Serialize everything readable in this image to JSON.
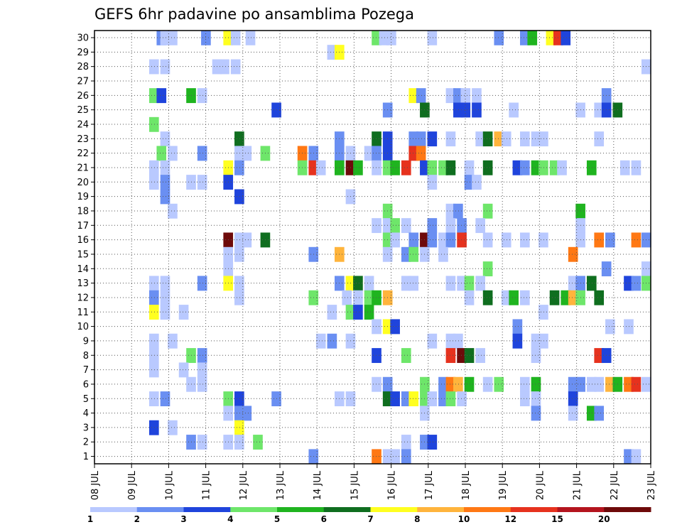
{
  "chart_data": {
    "type": "heatmap",
    "title": "GEFS 6hr padavine po ansamblima Pozega",
    "xlabel": "",
    "ylabel": "",
    "x_tick_labels": [
      "08 JUL",
      "09 JUL",
      "10 JUL",
      "11 JUL",
      "12 JUL",
      "13 JUL",
      "14 JUL",
      "15 JUL",
      "16 JUL",
      "17 JUL",
      "18 JUL",
      "19 JUL",
      "20 JUL",
      "21 JUL",
      "22 JUL",
      "23 JUL"
    ],
    "x_range_days": [
      8,
      23
    ],
    "y_tick_labels": [
      "1",
      "2",
      "3",
      "4",
      "5",
      "6",
      "7",
      "8",
      "9",
      "10",
      "11",
      "12",
      "13",
      "14",
      "15",
      "16",
      "17",
      "18",
      "19",
      "20",
      "21",
      "22",
      "23",
      "24",
      "25",
      "26",
      "27",
      "28",
      "29",
      "30"
    ],
    "grid": true,
    "colorbar": {
      "boundaries": [
        "1",
        "2",
        "3",
        "4",
        "5",
        "6",
        "7",
        "8",
        "10",
        "12",
        "15",
        "20"
      ],
      "colors": [
        "#b9c9ff",
        "#6a8ff2",
        "#1f44dc",
        "#6ee66a",
        "#1fb41f",
        "#0f6e1f",
        "#ffff20",
        "#ffb43c",
        "#ff7814",
        "#e6321e",
        "#b4141e",
        "#6e0a0a"
      ],
      "placement": "bottom"
    },
    "cells": [
      [
        30,
        9.8,
        1
      ],
      [
        30,
        9.9,
        0
      ],
      [
        30,
        10.1,
        0
      ],
      [
        30,
        11.0,
        1
      ],
      [
        30,
        11.6,
        6
      ],
      [
        30,
        11.8,
        0
      ],
      [
        30,
        12.2,
        0
      ],
      [
        30,
        15.6,
        3
      ],
      [
        30,
        15.8,
        0
      ],
      [
        30,
        16.0,
        0
      ],
      [
        30,
        17.1,
        0
      ],
      [
        30,
        18.9,
        1
      ],
      [
        30,
        19.6,
        1
      ],
      [
        30,
        19.8,
        4
      ],
      [
        30,
        20.3,
        6
      ],
      [
        30,
        20.5,
        9
      ],
      [
        30,
        20.7,
        2
      ],
      [
        29,
        14.4,
        0
      ],
      [
        29,
        14.6,
        6
      ],
      [
        28,
        9.6,
        0
      ],
      [
        28,
        9.9,
        0
      ],
      [
        28,
        11.3,
        0
      ],
      [
        28,
        11.5,
        0
      ],
      [
        28,
        11.8,
        0
      ],
      [
        28,
        22.9,
        0
      ],
      [
        26,
        9.6,
        3
      ],
      [
        26,
        9.8,
        2
      ],
      [
        26,
        10.6,
        4
      ],
      [
        26,
        10.9,
        0
      ],
      [
        26,
        16.6,
        6
      ],
      [
        26,
        16.8,
        1
      ],
      [
        26,
        17.6,
        0
      ],
      [
        26,
        17.8,
        1
      ],
      [
        26,
        18.0,
        0
      ],
      [
        26,
        18.3,
        0
      ],
      [
        26,
        21.8,
        1
      ],
      [
        25,
        12.9,
        2
      ],
      [
        25,
        15.9,
        1
      ],
      [
        25,
        16.9,
        5
      ],
      [
        25,
        17.8,
        2
      ],
      [
        25,
        18.0,
        2
      ],
      [
        25,
        18.3,
        2
      ],
      [
        25,
        19.3,
        0
      ],
      [
        25,
        21.1,
        0
      ],
      [
        25,
        21.6,
        0
      ],
      [
        25,
        21.8,
        2
      ],
      [
        25,
        22.1,
        5
      ],
      [
        24,
        9.6,
        3
      ],
      [
        23,
        9.9,
        0
      ],
      [
        23,
        11.9,
        5
      ],
      [
        23,
        14.6,
        1
      ],
      [
        23,
        15.6,
        5
      ],
      [
        23,
        15.9,
        2
      ],
      [
        23,
        16.6,
        1
      ],
      [
        23,
        16.8,
        1
      ],
      [
        23,
        17.1,
        2
      ],
      [
        23,
        17.6,
        0
      ],
      [
        23,
        18.4,
        0
      ],
      [
        23,
        18.6,
        5
      ],
      [
        23,
        18.9,
        7
      ],
      [
        23,
        19.1,
        0
      ],
      [
        23,
        19.6,
        0
      ],
      [
        23,
        19.9,
        0
      ],
      [
        23,
        20.1,
        0
      ],
      [
        23,
        21.6,
        0
      ],
      [
        22,
        9.8,
        3
      ],
      [
        22,
        10.1,
        0
      ],
      [
        22,
        10.9,
        1
      ],
      [
        22,
        11.9,
        0
      ],
      [
        22,
        12.1,
        0
      ],
      [
        22,
        12.6,
        3
      ],
      [
        22,
        13.6,
        8
      ],
      [
        22,
        13.9,
        1
      ],
      [
        22,
        14.6,
        1
      ],
      [
        22,
        14.9,
        0
      ],
      [
        22,
        15.4,
        0
      ],
      [
        22,
        15.6,
        1
      ],
      [
        22,
        15.9,
        2
      ],
      [
        22,
        16.6,
        9
      ],
      [
        22,
        16.8,
        8
      ],
      [
        21,
        9.6,
        0
      ],
      [
        21,
        9.9,
        0
      ],
      [
        21,
        11.6,
        6
      ],
      [
        21,
        11.9,
        1
      ],
      [
        21,
        13.6,
        3
      ],
      [
        21,
        13.9,
        9
      ],
      [
        21,
        14.1,
        0
      ],
      [
        21,
        14.6,
        4
      ],
      [
        21,
        14.9,
        11
      ],
      [
        21,
        15.1,
        4
      ],
      [
        21,
        15.6,
        0
      ],
      [
        21,
        15.9,
        3
      ],
      [
        21,
        16.1,
        4
      ],
      [
        21,
        16.4,
        9
      ],
      [
        21,
        16.9,
        2
      ],
      [
        21,
        17.1,
        3
      ],
      [
        21,
        17.4,
        3
      ],
      [
        21,
        17.6,
        5
      ],
      [
        21,
        18.1,
        0
      ],
      [
        21,
        18.6,
        5
      ],
      [
        21,
        19.4,
        2
      ],
      [
        21,
        19.6,
        1
      ],
      [
        21,
        19.9,
        4
      ],
      [
        21,
        20.1,
        3
      ],
      [
        21,
        20.4,
        3
      ],
      [
        21,
        20.6,
        0
      ],
      [
        21,
        21.4,
        4
      ],
      [
        21,
        22.3,
        0
      ],
      [
        21,
        22.6,
        0
      ],
      [
        20,
        9.6,
        0
      ],
      [
        20,
        9.9,
        1
      ],
      [
        20,
        10.6,
        0
      ],
      [
        20,
        10.9,
        0
      ],
      [
        20,
        11.6,
        2
      ],
      [
        20,
        17.1,
        0
      ],
      [
        20,
        18.1,
        1
      ],
      [
        20,
        18.3,
        0
      ],
      [
        19,
        9.9,
        1
      ],
      [
        19,
        11.9,
        2
      ],
      [
        19,
        14.9,
        0
      ],
      [
        18,
        10.1,
        0
      ],
      [
        18,
        15.9,
        3
      ],
      [
        18,
        17.6,
        0
      ],
      [
        18,
        17.8,
        1
      ],
      [
        18,
        18.6,
        3
      ],
      [
        18,
        21.1,
        4
      ],
      [
        17,
        15.6,
        0
      ],
      [
        17,
        15.9,
        0
      ],
      [
        17,
        16.1,
        3
      ],
      [
        17,
        16.4,
        0
      ],
      [
        17,
        17.1,
        1
      ],
      [
        17,
        17.6,
        0
      ],
      [
        17,
        17.9,
        1
      ],
      [
        17,
        18.4,
        0
      ],
      [
        17,
        21.1,
        0
      ],
      [
        16,
        11.6,
        11
      ],
      [
        16,
        11.9,
        0
      ],
      [
        16,
        12.1,
        0
      ],
      [
        16,
        12.6,
        5
      ],
      [
        16,
        15.9,
        3
      ],
      [
        16,
        16.1,
        0
      ],
      [
        16,
        16.6,
        1
      ],
      [
        16,
        16.9,
        11
      ],
      [
        16,
        17.1,
        1
      ],
      [
        16,
        17.4,
        0
      ],
      [
        16,
        17.6,
        1
      ],
      [
        16,
        17.9,
        9
      ],
      [
        16,
        18.6,
        0
      ],
      [
        16,
        19.1,
        0
      ],
      [
        16,
        19.6,
        0
      ],
      [
        16,
        20.1,
        0
      ],
      [
        16,
        21.1,
        0
      ],
      [
        16,
        21.6,
        8
      ],
      [
        16,
        21.9,
        1
      ],
      [
        16,
        22.6,
        8
      ],
      [
        16,
        22.9,
        1
      ],
      [
        15,
        11.6,
        0
      ],
      [
        15,
        11.9,
        0
      ],
      [
        15,
        13.9,
        1
      ],
      [
        15,
        14.6,
        7
      ],
      [
        15,
        15.9,
        0
      ],
      [
        15,
        16.4,
        1
      ],
      [
        15,
        16.6,
        3
      ],
      [
        15,
        16.9,
        0
      ],
      [
        15,
        17.4,
        0
      ],
      [
        15,
        20.9,
        8
      ],
      [
        14,
        11.6,
        0
      ],
      [
        14,
        18.6,
        3
      ],
      [
        14,
        21.8,
        1
      ],
      [
        14,
        22.9,
        0
      ],
      [
        13,
        9.6,
        0
      ],
      [
        13,
        9.9,
        0
      ],
      [
        13,
        10.9,
        1
      ],
      [
        13,
        11.6,
        6
      ],
      [
        13,
        11.9,
        0
      ],
      [
        13,
        14.6,
        1
      ],
      [
        13,
        14.9,
        6
      ],
      [
        13,
        15.1,
        5
      ],
      [
        13,
        15.4,
        0
      ],
      [
        13,
        16.4,
        0
      ],
      [
        13,
        16.6,
        0
      ],
      [
        13,
        17.6,
        0
      ],
      [
        13,
        17.9,
        0
      ],
      [
        13,
        18.1,
        3
      ],
      [
        13,
        18.4,
        0
      ],
      [
        13,
        20.9,
        0
      ],
      [
        13,
        21.1,
        1
      ],
      [
        13,
        21.4,
        5
      ],
      [
        13,
        22.4,
        2
      ],
      [
        13,
        22.6,
        1
      ],
      [
        13,
        22.9,
        3
      ],
      [
        12,
        9.6,
        1
      ],
      [
        12,
        9.9,
        0
      ],
      [
        12,
        11.9,
        0
      ],
      [
        12,
        13.9,
        3
      ],
      [
        12,
        14.8,
        0
      ],
      [
        12,
        15.1,
        0
      ],
      [
        12,
        15.4,
        3
      ],
      [
        12,
        15.6,
        4
      ],
      [
        12,
        15.9,
        7
      ],
      [
        12,
        18.1,
        0
      ],
      [
        12,
        18.6,
        5
      ],
      [
        12,
        19.1,
        0
      ],
      [
        12,
        19.3,
        4
      ],
      [
        12,
        19.6,
        0
      ],
      [
        12,
        20.4,
        5
      ],
      [
        12,
        20.7,
        4
      ],
      [
        12,
        20.9,
        7
      ],
      [
        12,
        21.1,
        3
      ],
      [
        12,
        21.6,
        5
      ],
      [
        11,
        9.6,
        6
      ],
      [
        11,
        9.9,
        0
      ],
      [
        11,
        10.4,
        0
      ],
      [
        11,
        14.4,
        0
      ],
      [
        11,
        14.9,
        3
      ],
      [
        11,
        15.1,
        2
      ],
      [
        11,
        15.4,
        4
      ],
      [
        11,
        20.1,
        0
      ],
      [
        10,
        15.6,
        0
      ],
      [
        10,
        15.9,
        6
      ],
      [
        10,
        16.1,
        2
      ],
      [
        10,
        19.4,
        1
      ],
      [
        10,
        21.9,
        0
      ],
      [
        10,
        22.4,
        0
      ],
      [
        9,
        9.6,
        0
      ],
      [
        9,
        10.1,
        0
      ],
      [
        9,
        14.1,
        0
      ],
      [
        9,
        14.4,
        1
      ],
      [
        9,
        14.9,
        0
      ],
      [
        9,
        17.1,
        0
      ],
      [
        9,
        17.6,
        0
      ],
      [
        9,
        17.8,
        0
      ],
      [
        9,
        19.4,
        2
      ],
      [
        9,
        19.9,
        0
      ],
      [
        9,
        20.1,
        0
      ],
      [
        8,
        9.6,
        0
      ],
      [
        8,
        10.6,
        3
      ],
      [
        8,
        10.9,
        1
      ],
      [
        8,
        15.6,
        2
      ],
      [
        8,
        16.4,
        3
      ],
      [
        8,
        17.6,
        9
      ],
      [
        8,
        17.9,
        11
      ],
      [
        8,
        18.1,
        5
      ],
      [
        8,
        18.4,
        0
      ],
      [
        8,
        19.9,
        0
      ],
      [
        8,
        21.6,
        9
      ],
      [
        8,
        21.8,
        2
      ],
      [
        7,
        9.6,
        0
      ],
      [
        7,
        10.4,
        0
      ],
      [
        7,
        10.9,
        0
      ],
      [
        6,
        10.6,
        0
      ],
      [
        6,
        10.9,
        0
      ],
      [
        6,
        15.6,
        0
      ],
      [
        6,
        15.9,
        1
      ],
      [
        6,
        16.9,
        3
      ],
      [
        6,
        17.4,
        1
      ],
      [
        6,
        17.6,
        8
      ],
      [
        6,
        17.8,
        7
      ],
      [
        6,
        18.1,
        4
      ],
      [
        6,
        18.6,
        0
      ],
      [
        6,
        18.9,
        3
      ],
      [
        6,
        19.6,
        0
      ],
      [
        6,
        19.9,
        4
      ],
      [
        6,
        20.9,
        1
      ],
      [
        6,
        21.1,
        1
      ],
      [
        6,
        21.4,
        0
      ],
      [
        6,
        21.6,
        0
      ],
      [
        6,
        21.9,
        7
      ],
      [
        6,
        22.1,
        4
      ],
      [
        6,
        22.4,
        8
      ],
      [
        6,
        22.6,
        9
      ],
      [
        6,
        22.9,
        0
      ],
      [
        5,
        9.6,
        0
      ],
      [
        5,
        9.9,
        1
      ],
      [
        5,
        11.6,
        3
      ],
      [
        5,
        11.9,
        2
      ],
      [
        5,
        12.9,
        1
      ],
      [
        5,
        14.6,
        0
      ],
      [
        5,
        14.9,
        0
      ],
      [
        5,
        15.9,
        5
      ],
      [
        5,
        16.1,
        2
      ],
      [
        5,
        16.4,
        1
      ],
      [
        5,
        16.6,
        6
      ],
      [
        5,
        16.9,
        3
      ],
      [
        5,
        17.1,
        0
      ],
      [
        5,
        17.4,
        1
      ],
      [
        5,
        17.6,
        3
      ],
      [
        5,
        17.9,
        0
      ],
      [
        5,
        19.6,
        0
      ],
      [
        5,
        19.9,
        0
      ],
      [
        5,
        20.9,
        2
      ],
      [
        4,
        11.6,
        0
      ],
      [
        4,
        11.9,
        1
      ],
      [
        4,
        12.1,
        1
      ],
      [
        4,
        16.9,
        0
      ],
      [
        4,
        19.9,
        1
      ],
      [
        4,
        20.9,
        0
      ],
      [
        4,
        21.4,
        4
      ],
      [
        4,
        21.6,
        1
      ],
      [
        3,
        9.6,
        2
      ],
      [
        3,
        10.1,
        0
      ],
      [
        3,
        11.9,
        6
      ],
      [
        2,
        10.6,
        1
      ],
      [
        2,
        10.9,
        0
      ],
      [
        2,
        11.6,
        0
      ],
      [
        2,
        11.9,
        0
      ],
      [
        2,
        12.4,
        3
      ],
      [
        2,
        16.4,
        0
      ],
      [
        2,
        16.9,
        1
      ],
      [
        2,
        17.1,
        2
      ],
      [
        1,
        13.9,
        1
      ],
      [
        1,
        15.6,
        8
      ],
      [
        1,
        15.9,
        0
      ],
      [
        1,
        16.1,
        0
      ],
      [
        1,
        16.4,
        1
      ],
      [
        1,
        22.4,
        1
      ],
      [
        1,
        22.6,
        0
      ]
    ]
  }
}
